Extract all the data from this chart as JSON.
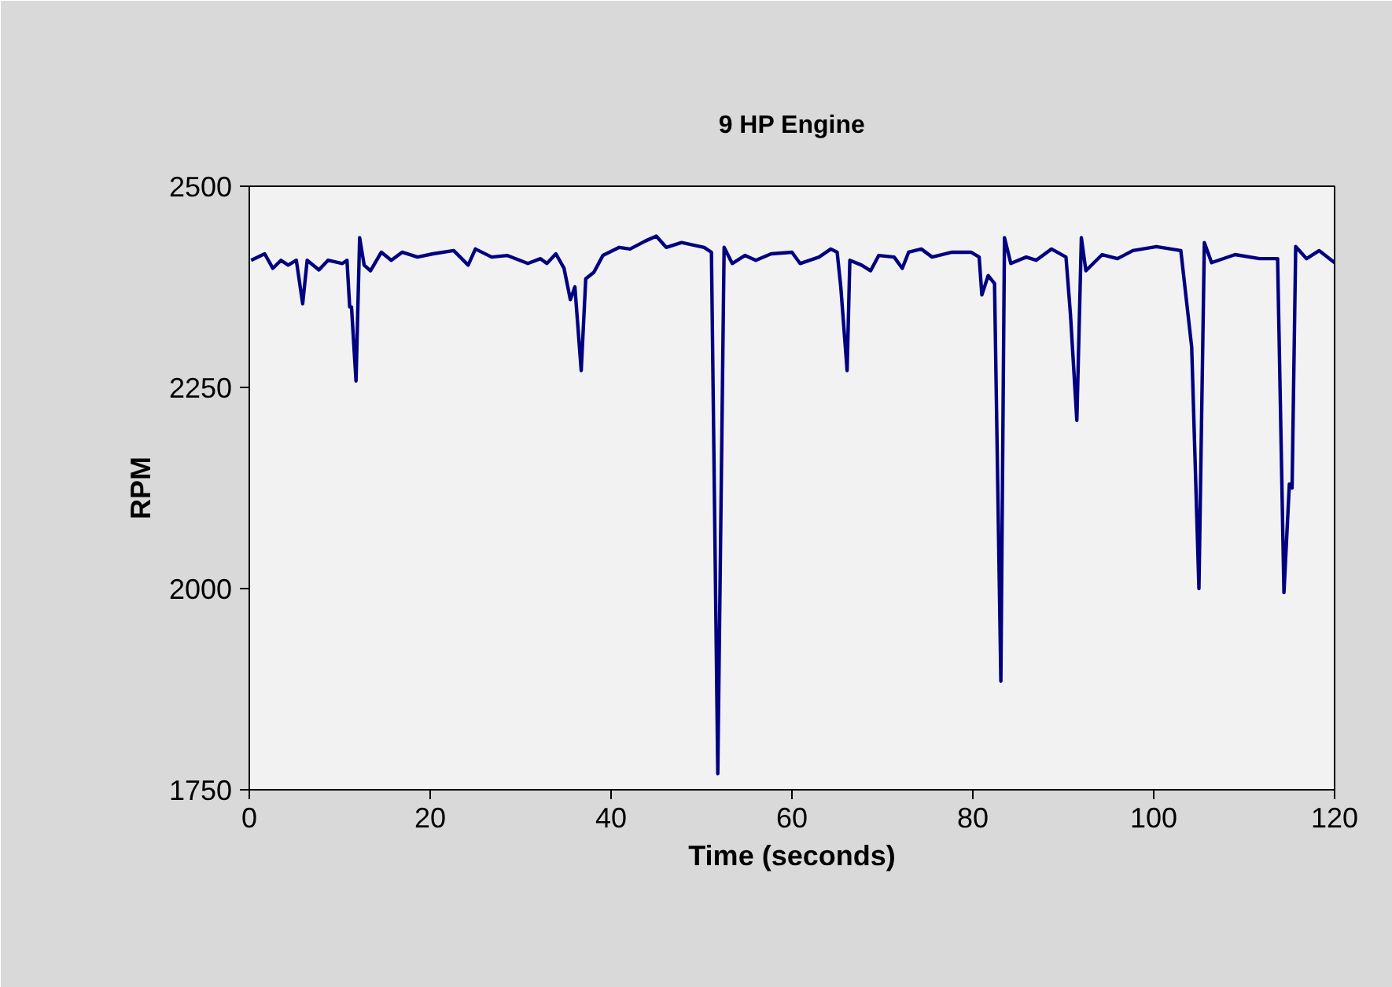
{
  "chart_data": {
    "type": "line",
    "title": "9 HP Engine",
    "xlabel": "Time (seconds)",
    "ylabel": "RPM",
    "xlim": [
      0,
      120
    ],
    "xticks": [
      0,
      20,
      40,
      60,
      80,
      100,
      120
    ],
    "ylim": [
      1750,
      2500
    ],
    "yticks": [
      1750,
      2000,
      2250,
      2500
    ],
    "grid": false,
    "marker": "none",
    "line_style": "solid",
    "series": [
      {
        "color": "#000080",
        "x": [
          0.2,
          1.7,
          2.6,
          3.5,
          4.3,
          5.2,
          5.9,
          6.4,
          7.7,
          8.7,
          10.3,
          10.8,
          11.1,
          11.3,
          11.8,
          12.2,
          12.7,
          13.4,
          14.6,
          15.7,
          16.9,
          18.6,
          20.3,
          22.6,
          24.2,
          25.0,
          26.8,
          28.5,
          30.8,
          32.2,
          32.9,
          33.9,
          34.8,
          35.5,
          36.0,
          36.7,
          37.2,
          38.1,
          39.1,
          40.9,
          42.1,
          43.8,
          45.0,
          46.1,
          47.8,
          50.3,
          51.1,
          51.8,
          52.5,
          53.4,
          54.8,
          56.0,
          57.7,
          60.0,
          60.9,
          63.0,
          64.3,
          65.0,
          65.4,
          66.1,
          66.4,
          67.7,
          68.7,
          69.6,
          71.3,
          72.2,
          72.9,
          74.3,
          75.5,
          77.7,
          79.8,
          80.7,
          81.0,
          81.7,
          82.4,
          83.1,
          83.5,
          84.2,
          85.9,
          87.0,
          88.7,
          90.3,
          90.8,
          91.5,
          92.0,
          92.5,
          94.3,
          96.0,
          97.7,
          100.3,
          103.0,
          104.2,
          105.0,
          105.6,
          106.4,
          109.0,
          111.7,
          113.7,
          114.4,
          115.0,
          115.3,
          115.7,
          116.9,
          118.3,
          120.0
        ],
        "values": [
          2408,
          2416,
          2398,
          2408,
          2402,
          2408,
          2354,
          2408,
          2396,
          2408,
          2404,
          2408,
          2350,
          2350,
          2258,
          2436,
          2402,
          2395,
          2418,
          2408,
          2418,
          2412,
          2416,
          2420,
          2402,
          2422,
          2412,
          2414,
          2404,
          2410,
          2404,
          2416,
          2398,
          2359,
          2375,
          2271,
          2385,
          2393,
          2414,
          2424,
          2422,
          2432,
          2438,
          2424,
          2430,
          2424,
          2418,
          1770,
          2424,
          2404,
          2414,
          2408,
          2416,
          2418,
          2404,
          2412,
          2422,
          2418,
          2375,
          2271,
          2408,
          2402,
          2395,
          2414,
          2412,
          2398,
          2418,
          2422,
          2412,
          2418,
          2418,
          2412,
          2365,
          2389,
          2379,
          1885,
          2436,
          2404,
          2412,
          2408,
          2422,
          2412,
          2340,
          2209,
          2436,
          2395,
          2415,
          2410,
          2420,
          2425,
          2420,
          2300,
          2000,
          2430,
          2405,
          2415,
          2410,
          2410,
          1995,
          2130,
          2125,
          2425,
          2410,
          2420,
          2405
        ]
      }
    ]
  }
}
